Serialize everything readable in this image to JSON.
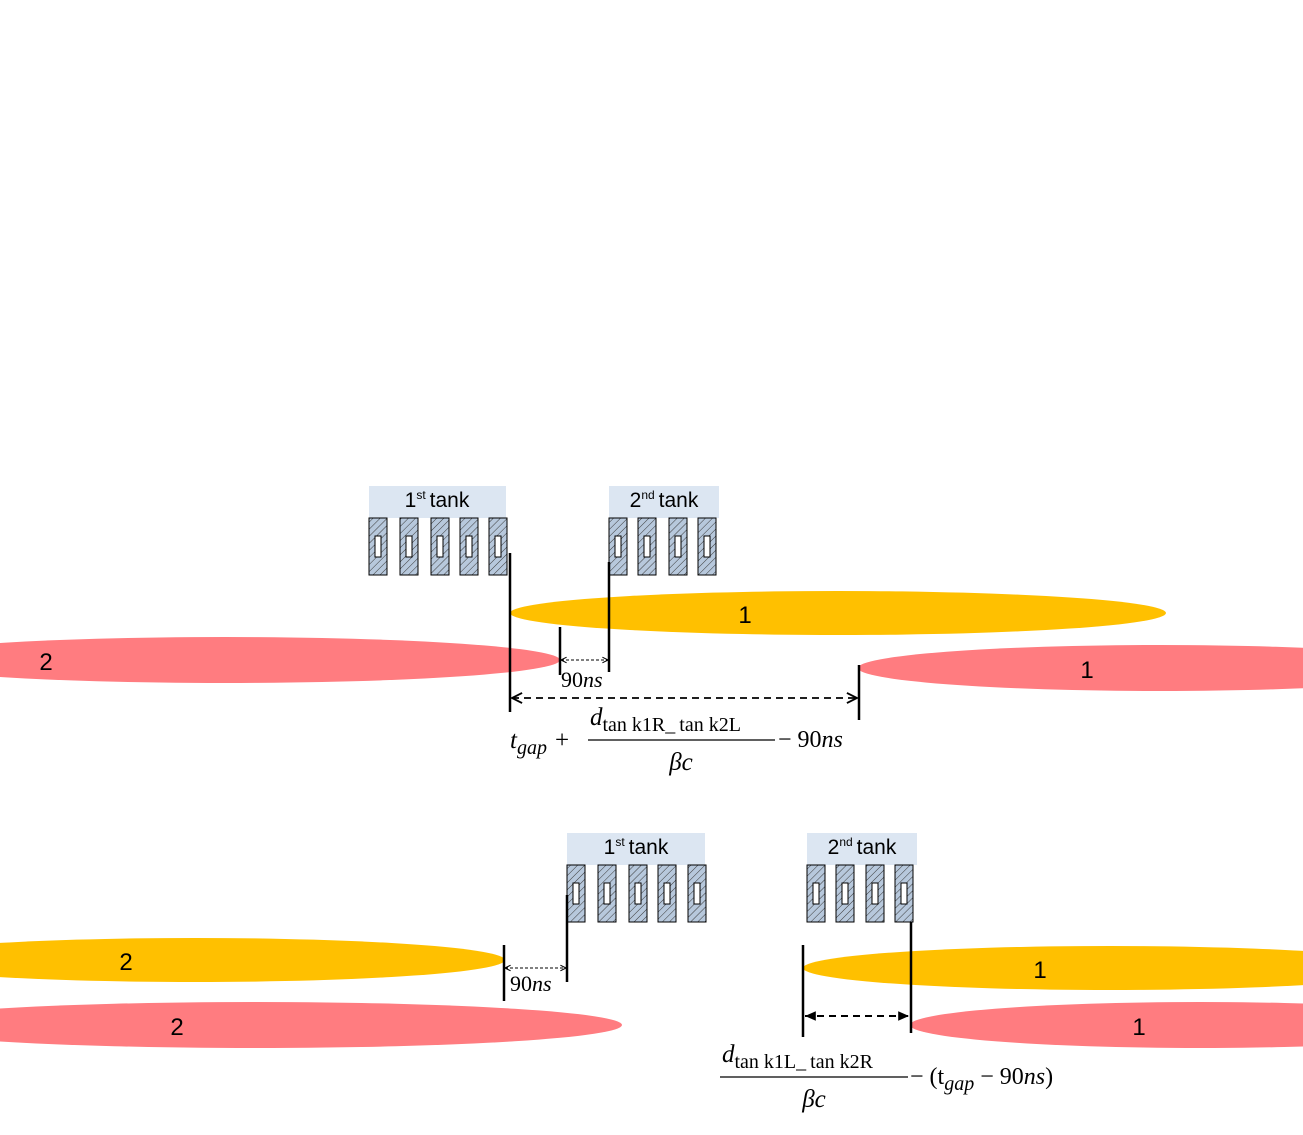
{
  "colors": {
    "orange": "#FFC000",
    "red": "#FF7C80",
    "tank_label_bg": "#DCE6F2",
    "cell_fill": "#B7C8DC",
    "line": "#000000"
  },
  "icons": [
    "hatched-drift-tube-icon"
  ],
  "top": {
    "tank1": {
      "num": "1",
      "suffix": "st",
      "word": "tank"
    },
    "tank2": {
      "num": "2",
      "suffix": "nd",
      "word": "tank"
    },
    "bunch_orange_1": "1",
    "bunch_red_2": "2",
    "bunch_red_1": "1",
    "gap_label": {
      "num": "90",
      "unit": "ns"
    },
    "formula": {
      "t": "t",
      "t_sub": "gap",
      "plus": "+",
      "num_d": "d",
      "num_sub1": "tan k1R",
      "num_sep": "_",
      "num_sub2": "tan k2L",
      "den": "βc",
      "tail_minus": "− 90",
      "tail_unit": "ns"
    }
  },
  "bottom": {
    "tank1": {
      "num": "1",
      "suffix": "st",
      "word": "tank"
    },
    "tank2": {
      "num": "2",
      "suffix": "nd",
      "word": "tank"
    },
    "bunch_orange_2": "2",
    "bunch_red_2": "2",
    "bunch_orange_1": "1",
    "bunch_red_1": "1",
    "gap_label": {
      "num": "90",
      "unit": "ns"
    },
    "formula": {
      "num_d": "d",
      "num_sub1": "tan k1L",
      "num_sep": "_",
      "num_sub2": "tan k2R",
      "den": "βc",
      "tail_open": "− (t",
      "tail_sub": "gap",
      "tail_mid": " − 90",
      "tail_unit": "ns",
      "tail_close": ")"
    }
  }
}
